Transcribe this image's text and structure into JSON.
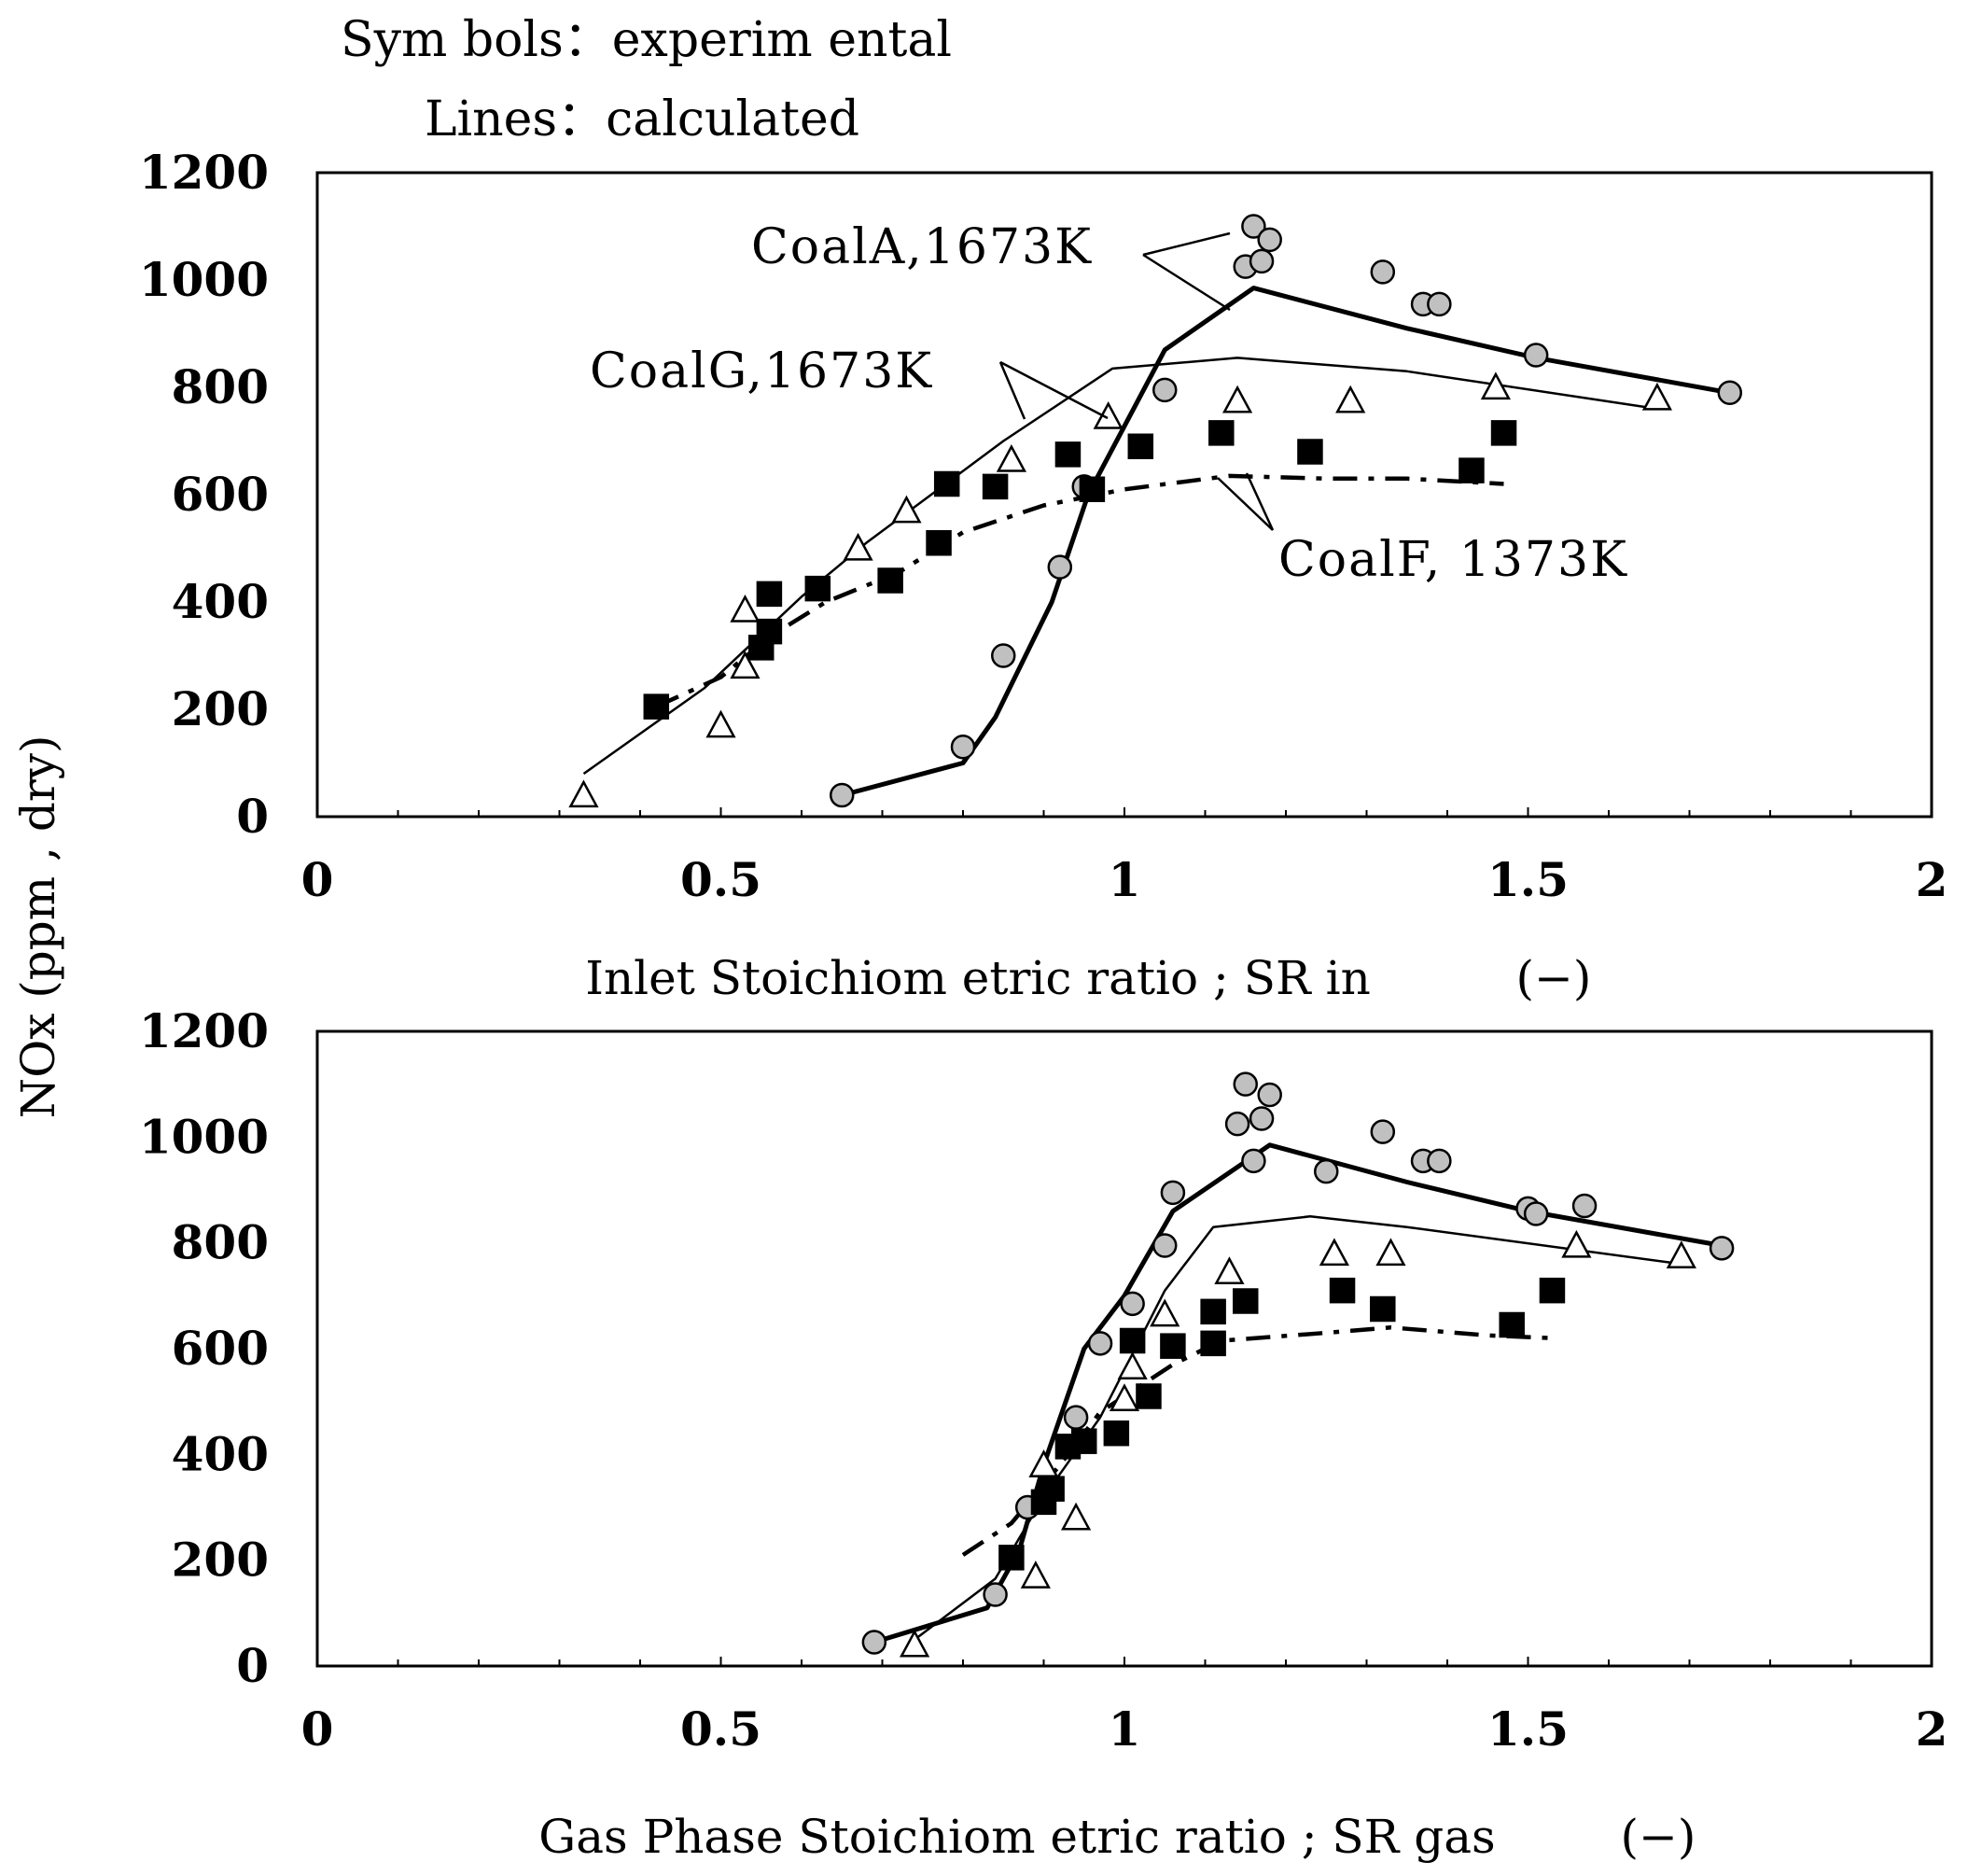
{
  "notes": {
    "symbols": "Sym bols：experim ental",
    "lines": "Lines：calculated"
  },
  "shared_ylabel": "NOx (ppm , dry)",
  "chart_data": [
    {
      "type": "scatter",
      "title": "",
      "xlabel": "Inlet Stoichiom etric ratio ; SR in",
      "xunit": "(−)",
      "ylabel": "NOx (ppm , dry)",
      "xlim": [
        0,
        2
      ],
      "ylim": [
        0,
        1200
      ],
      "xticks": [
        0,
        0.5,
        1,
        1.5,
        2
      ],
      "xtick_labels": [
        "0",
        "0.5",
        "1",
        "1.5",
        "2"
      ],
      "yticks": [
        0,
        200,
        400,
        600,
        800,
        1000,
        1200
      ],
      "ytick_labels": [
        "0",
        "200",
        "400",
        "600",
        "800",
        "1000",
        "1200"
      ],
      "grid": false,
      "annotations": [
        {
          "text": "CoalA,1673K",
          "series": "Coal A, 1673K"
        },
        {
          "text": "CoalG,1673K",
          "series": "Coal G, 1673K"
        },
        {
          "text": "CoalF, 1373K",
          "series": "Coal F, 1373K"
        }
      ],
      "series": [
        {
          "name": "Coal A, 1673K",
          "kind": "experimental",
          "marker": "circle",
          "color": "#c0c0c0",
          "points": [
            [
              0.65,
              40
            ],
            [
              0.8,
              130
            ],
            [
              0.85,
              300
            ],
            [
              0.92,
              465
            ],
            [
              0.95,
              615
            ],
            [
              1.05,
              795
            ],
            [
              1.15,
              1025
            ],
            [
              1.16,
              1100
            ],
            [
              1.17,
              1035
            ],
            [
              1.18,
              1075
            ],
            [
              1.32,
              1015
            ],
            [
              1.37,
              955
            ],
            [
              1.39,
              955
            ],
            [
              1.51,
              860
            ],
            [
              1.75,
              790
            ]
          ]
        },
        {
          "name": "Coal A, 1673K",
          "kind": "calculated",
          "line": "bold-solid",
          "color": "#000000",
          "points": [
            [
              0.65,
              40
            ],
            [
              0.8,
              100
            ],
            [
              0.84,
              185
            ],
            [
              0.91,
              400
            ],
            [
              0.955,
              600
            ],
            [
              1.05,
              870
            ],
            [
              1.16,
              985
            ],
            [
              1.35,
              910
            ],
            [
              1.51,
              855
            ],
            [
              1.75,
              790
            ]
          ]
        },
        {
          "name": "Coal G, 1673K",
          "kind": "experimental",
          "marker": "triangle",
          "color": "#ffffff",
          "points": [
            [
              0.33,
              40
            ],
            [
              0.5,
              170
            ],
            [
              0.53,
              280
            ],
            [
              0.53,
              385
            ],
            [
              0.67,
              500
            ],
            [
              0.73,
              570
            ],
            [
              0.86,
              665
            ],
            [
              0.98,
              745
            ],
            [
              1.14,
              775
            ],
            [
              1.28,
              775
            ],
            [
              1.46,
              800
            ],
            [
              1.66,
              780
            ]
          ]
        },
        {
          "name": "Coal G, 1673K",
          "kind": "calculated",
          "line": "thin-solid",
          "color": "#000000",
          "points": [
            [
              0.33,
              80
            ],
            [
              0.48,
              240
            ],
            [
              0.6,
              410
            ],
            [
              0.68,
              510
            ],
            [
              0.85,
              700
            ],
            [
              0.985,
              835
            ],
            [
              1.14,
              855
            ],
            [
              1.35,
              830
            ],
            [
              1.66,
              760
            ]
          ]
        },
        {
          "name": "Coal F, 1373K",
          "kind": "experimental",
          "marker": "square",
          "color": "#000000",
          "points": [
            [
              0.42,
              205
            ],
            [
              0.55,
              315
            ],
            [
              0.56,
              345
            ],
            [
              0.56,
              415
            ],
            [
              0.62,
              425
            ],
            [
              0.71,
              440
            ],
            [
              0.77,
              510
            ],
            [
              0.78,
              620
            ],
            [
              0.84,
              615
            ],
            [
              0.93,
              675
            ],
            [
              0.96,
              610
            ],
            [
              1.02,
              690
            ],
            [
              1.12,
              715
            ],
            [
              1.23,
              680
            ],
            [
              1.43,
              645
            ],
            [
              1.47,
              715
            ]
          ]
        },
        {
          "name": "Coal F, 1373K",
          "kind": "calculated",
          "line": "dash-dot",
          "color": "#000000",
          "points": [
            [
              0.42,
              205
            ],
            [
              0.5,
              260
            ],
            [
              0.56,
              335
            ],
            [
              0.63,
              400
            ],
            [
              0.72,
              455
            ],
            [
              0.8,
              530
            ],
            [
              0.9,
              580
            ],
            [
              1.0,
              610
            ],
            [
              1.13,
              635
            ],
            [
              1.25,
              630
            ],
            [
              1.35,
              630
            ],
            [
              1.47,
              620
            ]
          ]
        }
      ]
    },
    {
      "type": "scatter",
      "title": "",
      "xlabel": "Gas Phase Stoichiom etric ratio ; SR gas",
      "xunit": "(−)",
      "ylabel": "NOx (ppm , dry)",
      "xlim": [
        0,
        2
      ],
      "ylim": [
        0,
        1200
      ],
      "xticks": [
        0,
        0.5,
        1,
        1.5,
        2
      ],
      "xtick_labels": [
        "0",
        "0.5",
        "1",
        "1.5",
        "2"
      ],
      "yticks": [
        0,
        200,
        400,
        600,
        800,
        1000,
        1200
      ],
      "ytick_labels": [
        "0",
        "200",
        "400",
        "600",
        "800",
        "1000",
        "1200"
      ],
      "grid": false,
      "annotations": [],
      "series": [
        {
          "name": "Coal A, 1673K",
          "kind": "experimental",
          "marker": "circle",
          "color": "#c0c0c0",
          "points": [
            [
              0.69,
              45
            ],
            [
              0.84,
              135
            ],
            [
              0.88,
              300
            ],
            [
              0.94,
              470
            ],
            [
              0.97,
              610
            ],
            [
              1.01,
              685
            ],
            [
              1.05,
              795
            ],
            [
              1.06,
              895
            ],
            [
              1.14,
              1025
            ],
            [
              1.15,
              1100
            ],
            [
              1.16,
              955
            ],
            [
              1.17,
              1035
            ],
            [
              1.18,
              1080
            ],
            [
              1.25,
              935
            ],
            [
              1.32,
              1010
            ],
            [
              1.37,
              955
            ],
            [
              1.39,
              955
            ],
            [
              1.5,
              865
            ],
            [
              1.51,
              855
            ],
            [
              1.57,
              870
            ],
            [
              1.74,
              790
            ]
          ]
        },
        {
          "name": "Coal A, 1673K",
          "kind": "calculated",
          "line": "bold-solid",
          "color": "#000000",
          "points": [
            [
              0.69,
              45
            ],
            [
              0.83,
              110
            ],
            [
              0.87,
              220
            ],
            [
              0.9,
              380
            ],
            [
              0.95,
              600
            ],
            [
              1.0,
              700
            ],
            [
              1.06,
              860
            ],
            [
              1.18,
              985
            ],
            [
              1.35,
              915
            ],
            [
              1.5,
              860
            ],
            [
              1.74,
              795
            ]
          ]
        },
        {
          "name": "Coal G, 1673K",
          "kind": "experimental",
          "marker": "triangle",
          "color": "#ffffff",
          "points": [
            [
              0.74,
              40
            ],
            [
              0.89,
              170
            ],
            [
              0.9,
              380
            ],
            [
              0.94,
              280
            ],
            [
              1.0,
              505
            ],
            [
              1.01,
              565
            ],
            [
              1.05,
              665
            ],
            [
              1.13,
              745
            ],
            [
              1.26,
              780
            ],
            [
              1.33,
              780
            ],
            [
              1.56,
              795
            ],
            [
              1.69,
              775
            ]
          ]
        },
        {
          "name": "Coal G, 1673K",
          "kind": "calculated",
          "line": "thin-solid",
          "color": "#000000",
          "points": [
            [
              0.74,
              50
            ],
            [
              0.84,
              165
            ],
            [
              0.9,
              320
            ],
            [
              0.97,
              470
            ],
            [
              1.05,
              710
            ],
            [
              1.11,
              830
            ],
            [
              1.23,
              850
            ],
            [
              1.35,
              830
            ],
            [
              1.69,
              760
            ]
          ]
        },
        {
          "name": "Coal F, 1373K",
          "kind": "experimental",
          "marker": "square",
          "color": "#000000",
          "points": [
            [
              0.86,
              205
            ],
            [
              0.9,
              310
            ],
            [
              0.91,
              335
            ],
            [
              0.93,
              415
            ],
            [
              0.95,
              425
            ],
            [
              0.99,
              440
            ],
            [
              1.01,
              615
            ],
            [
              1.03,
              510
            ],
            [
              1.06,
              605
            ],
            [
              1.11,
              670
            ],
            [
              1.11,
              610
            ],
            [
              1.15,
              690
            ],
            [
              1.27,
              710
            ],
            [
              1.32,
              675
            ],
            [
              1.48,
              645
            ],
            [
              1.53,
              710
            ]
          ]
        },
        {
          "name": "Coal F, 1373K",
          "kind": "calculated",
          "line": "dash-dot",
          "color": "#000000",
          "points": [
            [
              0.8,
              210
            ],
            [
              0.86,
              270
            ],
            [
              0.92,
              380
            ],
            [
              0.97,
              480
            ],
            [
              1.06,
              570
            ],
            [
              1.12,
              615
            ],
            [
              1.25,
              630
            ],
            [
              1.33,
              640
            ],
            [
              1.45,
              625
            ],
            [
              1.53,
              620
            ]
          ]
        }
      ]
    }
  ]
}
